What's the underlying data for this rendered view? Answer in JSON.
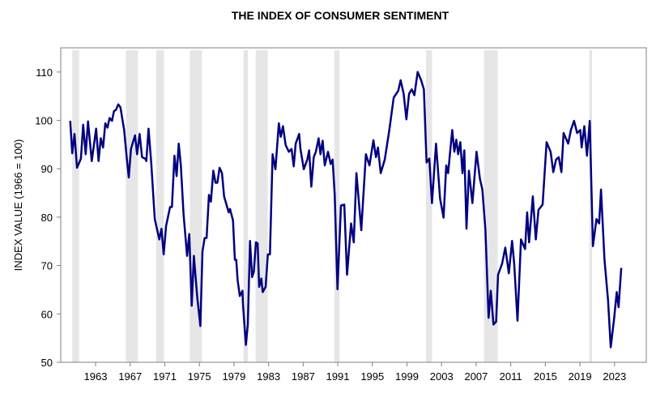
{
  "chart_data": {
    "type": "line",
    "title": "THE INDEX OF CONSUMER SENTIMENT",
    "xlabel": "",
    "ylabel": "INDEX VALUE (1966 = 100)",
    "xlim": [
      1958.97,
      2026.67
    ],
    "ylim": [
      50,
      115
    ],
    "xticks": [
      1963,
      1967,
      1971,
      1975,
      1979,
      1983,
      1987,
      1991,
      1995,
      1999,
      2003,
      2007,
      2011,
      2015,
      2019,
      2023
    ],
    "yticks": [
      50,
      60,
      70,
      80,
      90,
      100,
      110
    ],
    "grid": false,
    "line_color": "#000080",
    "shade_color": "#e6e6e6",
    "shaded_periods": [
      [
        1960.3,
        1961.1
      ],
      [
        1966.5,
        1967.9
      ],
      [
        1970.0,
        1970.9
      ],
      [
        1973.9,
        1975.3
      ],
      [
        1980.1,
        1980.6
      ],
      [
        1981.5,
        1982.9
      ],
      [
        1990.6,
        1991.2
      ],
      [
        2001.2,
        2001.9
      ],
      [
        2007.9,
        2009.5
      ],
      [
        2020.1,
        2020.4
      ]
    ],
    "series": [
      {
        "points": [
          [
            1960.07,
            99.9
          ],
          [
            1960.3,
            93.2
          ],
          [
            1960.56,
            97.2
          ],
          [
            1960.85,
            90.2
          ],
          [
            1961.3,
            92.1
          ],
          [
            1961.56,
            99.1
          ],
          [
            1961.85,
            93.0
          ],
          [
            1962.13,
            99.8
          ],
          [
            1962.56,
            91.6
          ],
          [
            1963.06,
            98.3
          ],
          [
            1963.34,
            91.6
          ],
          [
            1963.6,
            96.3
          ],
          [
            1963.87,
            94.4
          ],
          [
            1964.12,
            99.4
          ],
          [
            1964.37,
            98.5
          ],
          [
            1964.62,
            100.5
          ],
          [
            1964.9,
            99.9
          ],
          [
            1965.12,
            101.9
          ],
          [
            1965.37,
            102.2
          ],
          [
            1965.62,
            103.3
          ],
          [
            1965.87,
            102.7
          ],
          [
            1966.3,
            98.0
          ],
          [
            1966.62,
            91.9
          ],
          [
            1966.84,
            88.2
          ],
          [
            1967.09,
            94.1
          ],
          [
            1967.56,
            96.9
          ],
          [
            1967.8,
            93.0
          ],
          [
            1968.09,
            97.2
          ],
          [
            1968.37,
            92.4
          ],
          [
            1968.74,
            92.1
          ],
          [
            1968.87,
            91.6
          ],
          [
            1969.12,
            98.3
          ],
          [
            1969.43,
            91.3
          ],
          [
            1969.84,
            79.6
          ],
          [
            1970.37,
            75.4
          ],
          [
            1970.62,
            77.6
          ],
          [
            1970.87,
            72.3
          ],
          [
            1971.15,
            78.2
          ],
          [
            1971.61,
            82.1
          ],
          [
            1971.83,
            82.1
          ],
          [
            1972.12,
            92.7
          ],
          [
            1972.37,
            88.5
          ],
          [
            1972.61,
            95.2
          ],
          [
            1972.86,
            90.7
          ],
          [
            1973.17,
            80.7
          ],
          [
            1973.58,
            72.0
          ],
          [
            1973.83,
            76.5
          ],
          [
            1974.11,
            61.7
          ],
          [
            1974.36,
            72.0
          ],
          [
            1974.74,
            63.7
          ],
          [
            1975.11,
            57.5
          ],
          [
            1975.36,
            72.9
          ],
          [
            1975.61,
            75.7
          ],
          [
            1975.83,
            75.7
          ],
          [
            1976.11,
            84.6
          ],
          [
            1976.33,
            83.2
          ],
          [
            1976.61,
            89.6
          ],
          [
            1976.86,
            87.1
          ],
          [
            1977.08,
            87.1
          ],
          [
            1977.33,
            90.2
          ],
          [
            1977.61,
            89.1
          ],
          [
            1977.86,
            84.3
          ],
          [
            1978.39,
            81.0
          ],
          [
            1978.54,
            81.7
          ],
          [
            1978.89,
            79.3
          ],
          [
            1979.1,
            71.2
          ],
          [
            1979.26,
            71.2
          ],
          [
            1979.42,
            67.0
          ],
          [
            1979.67,
            63.7
          ],
          [
            1979.98,
            64.8
          ],
          [
            1980.04,
            62.0
          ],
          [
            1980.38,
            53.6
          ],
          [
            1980.6,
            57.8
          ],
          [
            1980.85,
            75.1
          ],
          [
            1981.1,
            67.6
          ],
          [
            1981.29,
            68.7
          ],
          [
            1981.54,
            74.8
          ],
          [
            1981.73,
            74.6
          ],
          [
            1981.91,
            65.6
          ],
          [
            1982.16,
            67.3
          ],
          [
            1982.32,
            64.5
          ],
          [
            1982.66,
            65.6
          ],
          [
            1982.91,
            72.3
          ],
          [
            1983.16,
            72.3
          ],
          [
            1983.47,
            93.0
          ],
          [
            1983.79,
            89.9
          ],
          [
            1984.19,
            99.4
          ],
          [
            1984.41,
            96.6
          ],
          [
            1984.66,
            98.8
          ],
          [
            1984.97,
            94.9
          ],
          [
            1985.35,
            93.5
          ],
          [
            1985.66,
            94.1
          ],
          [
            1985.91,
            90.5
          ],
          [
            1986.13,
            95.2
          ],
          [
            1986.54,
            97.2
          ],
          [
            1986.69,
            94.1
          ],
          [
            1987.07,
            89.9
          ],
          [
            1987.47,
            91.9
          ],
          [
            1987.69,
            93.8
          ],
          [
            1987.94,
            86.3
          ],
          [
            1988.22,
            92.4
          ],
          [
            1988.47,
            93.5
          ],
          [
            1988.78,
            96.3
          ],
          [
            1989.0,
            93.0
          ],
          [
            1989.25,
            95.8
          ],
          [
            1989.5,
            90.7
          ],
          [
            1989.87,
            93.5
          ],
          [
            1990.18,
            91.0
          ],
          [
            1990.4,
            91.9
          ],
          [
            1990.65,
            84.6
          ],
          [
            1990.97,
            65.1
          ],
          [
            1991.37,
            82.4
          ],
          [
            1991.75,
            82.6
          ],
          [
            1992.07,
            68.1
          ],
          [
            1992.54,
            78.7
          ],
          [
            1992.85,
            74.8
          ],
          [
            1993.16,
            89.1
          ],
          [
            1993.72,
            77.3
          ],
          [
            1994.25,
            93.0
          ],
          [
            1994.66,
            90.7
          ],
          [
            1995.12,
            95.9
          ],
          [
            1995.41,
            92.4
          ],
          [
            1995.65,
            94.4
          ],
          [
            1995.97,
            89.1
          ],
          [
            1996.43,
            91.9
          ],
          [
            1996.96,
            98.0
          ],
          [
            1997.46,
            104.7
          ],
          [
            1997.99,
            106.1
          ],
          [
            1998.27,
            108.3
          ],
          [
            1998.62,
            105.5
          ],
          [
            1998.93,
            100.2
          ],
          [
            1999.24,
            105.5
          ],
          [
            1999.55,
            106.4
          ],
          [
            1999.86,
            105.2
          ],
          [
            2000.24,
            110.0
          ],
          [
            2000.64,
            108.3
          ],
          [
            2000.96,
            106.4
          ],
          [
            2001.27,
            91.3
          ],
          [
            2001.58,
            92.1
          ],
          [
            2001.89,
            82.9
          ],
          [
            2002.36,
            95.2
          ],
          [
            2002.83,
            83.8
          ],
          [
            2003.23,
            79.9
          ],
          [
            2003.54,
            90.7
          ],
          [
            2003.76,
            89.1
          ],
          [
            2004.23,
            98.0
          ],
          [
            2004.48,
            93.5
          ],
          [
            2004.7,
            96.0
          ],
          [
            2004.92,
            93.0
          ],
          [
            2005.17,
            95.5
          ],
          [
            2005.41,
            89.1
          ],
          [
            2005.63,
            93.8
          ],
          [
            2005.88,
            77.6
          ],
          [
            2006.16,
            89.6
          ],
          [
            2006.57,
            82.9
          ],
          [
            2007.04,
            93.5
          ],
          [
            2007.44,
            87.9
          ],
          [
            2007.72,
            85.7
          ],
          [
            2008.07,
            77.3
          ],
          [
            2008.44,
            59.2
          ],
          [
            2008.69,
            64.8
          ],
          [
            2009.0,
            57.8
          ],
          [
            2009.31,
            58.4
          ],
          [
            2009.53,
            68.1
          ],
          [
            2010.0,
            70.4
          ],
          [
            2010.37,
            73.7
          ],
          [
            2010.78,
            68.4
          ],
          [
            2011.15,
            75.1
          ],
          [
            2011.4,
            70.4
          ],
          [
            2011.78,
            58.6
          ],
          [
            2012.18,
            75.4
          ],
          [
            2012.65,
            73.4
          ],
          [
            2012.9,
            81.0
          ],
          [
            2013.12,
            74.8
          ],
          [
            2013.55,
            84.3
          ],
          [
            2013.9,
            75.4
          ],
          [
            2014.21,
            81.5
          ],
          [
            2014.68,
            82.6
          ],
          [
            2015.14,
            95.5
          ],
          [
            2015.61,
            93.5
          ],
          [
            2015.92,
            89.3
          ],
          [
            2016.24,
            91.9
          ],
          [
            2016.55,
            92.4
          ],
          [
            2016.86,
            89.3
          ],
          [
            2017.11,
            97.4
          ],
          [
            2017.64,
            95.2
          ],
          [
            2017.95,
            98.0
          ],
          [
            2018.32,
            99.9
          ],
          [
            2018.67,
            97.4
          ],
          [
            2019.04,
            98.0
          ],
          [
            2019.2,
            94.4
          ],
          [
            2019.51,
            98.8
          ],
          [
            2019.82,
            92.7
          ],
          [
            2020.13,
            99.9
          ],
          [
            2020.5,
            74.0
          ],
          [
            2020.91,
            79.6
          ],
          [
            2021.22,
            78.7
          ],
          [
            2021.44,
            85.7
          ],
          [
            2021.84,
            71.2
          ],
          [
            2022.25,
            62.8
          ],
          [
            2022.56,
            53.1
          ],
          [
            2022.94,
            58.9
          ],
          [
            2023.25,
            64.5
          ],
          [
            2023.47,
            61.4
          ],
          [
            2023.78,
            69.5
          ]
        ]
      }
    ]
  }
}
